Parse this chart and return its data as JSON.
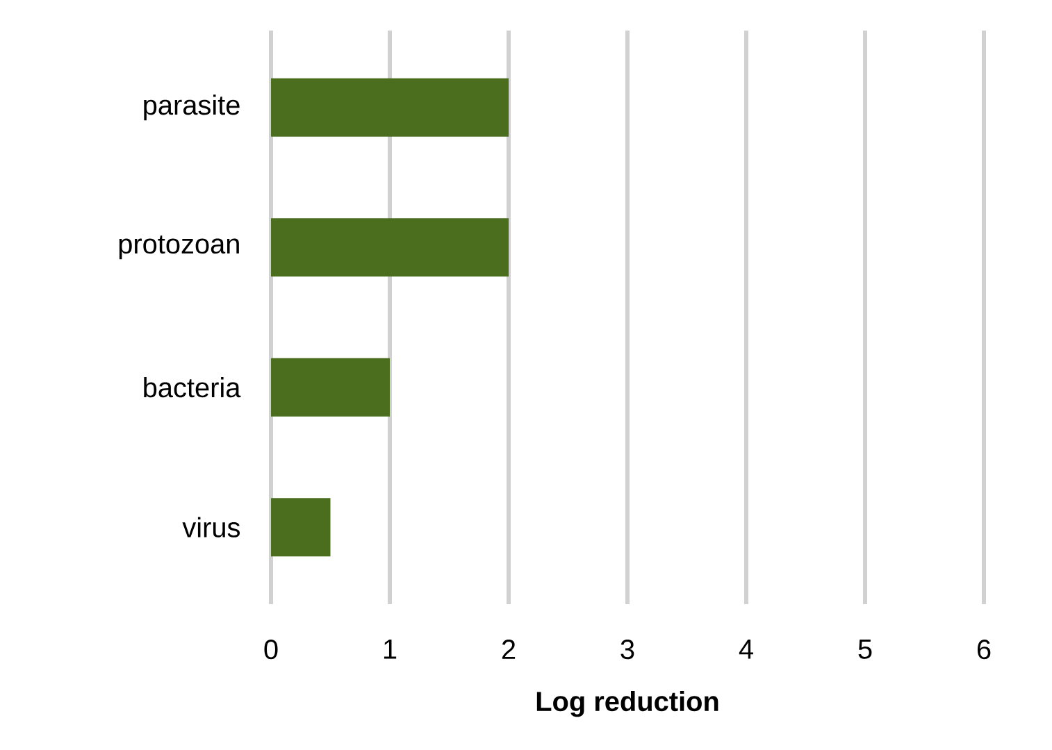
{
  "chart_data": {
    "type": "bar",
    "orientation": "horizontal",
    "xlabel": "Log reduction",
    "categories": [
      "parasite",
      "protozoan",
      "bacteria",
      "virus"
    ],
    "values": [
      2,
      2,
      1,
      0.5
    ],
    "color": "#4a6e1e",
    "xlim": [
      0,
      6
    ],
    "xticks": [
      0,
      1,
      2,
      3,
      4,
      5,
      6
    ],
    "grid": "x"
  }
}
